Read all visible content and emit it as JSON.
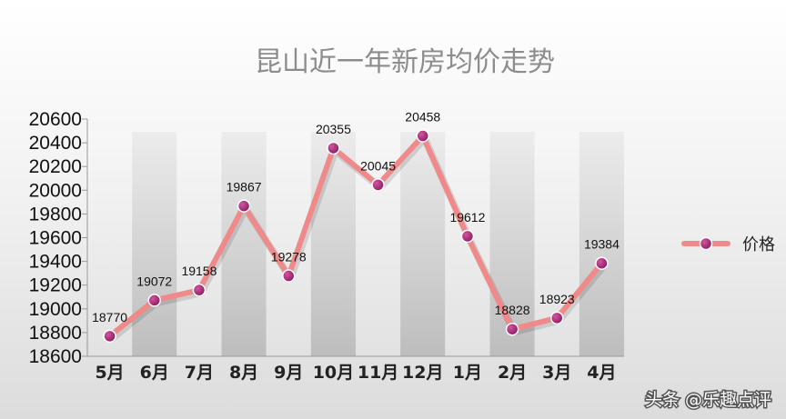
{
  "chart_data": {
    "type": "line",
    "title": "昆山近一年新房均价走势",
    "categories": [
      "5月",
      "6月",
      "7月",
      "8月",
      "9月",
      "10月",
      "11月",
      "12月",
      "1月",
      "2月",
      "3月",
      "4月"
    ],
    "series": [
      {
        "name": "价格",
        "values": [
          18770,
          19072,
          19158,
          19867,
          19278,
          20355,
          20045,
          20458,
          19612,
          18828,
          18923,
          19384
        ]
      }
    ],
    "ylim": [
      18600,
      20600
    ],
    "yticks": [
      18600,
      18800,
      19000,
      19200,
      19400,
      19600,
      19800,
      20000,
      20200,
      20400,
      20600
    ],
    "legend_position": "right",
    "grid": false,
    "colors": {
      "line": "#f08a8a",
      "marker": "#a0226e",
      "band": "#c9c9c9"
    }
  },
  "watermark": "头条 @乐趣点评"
}
